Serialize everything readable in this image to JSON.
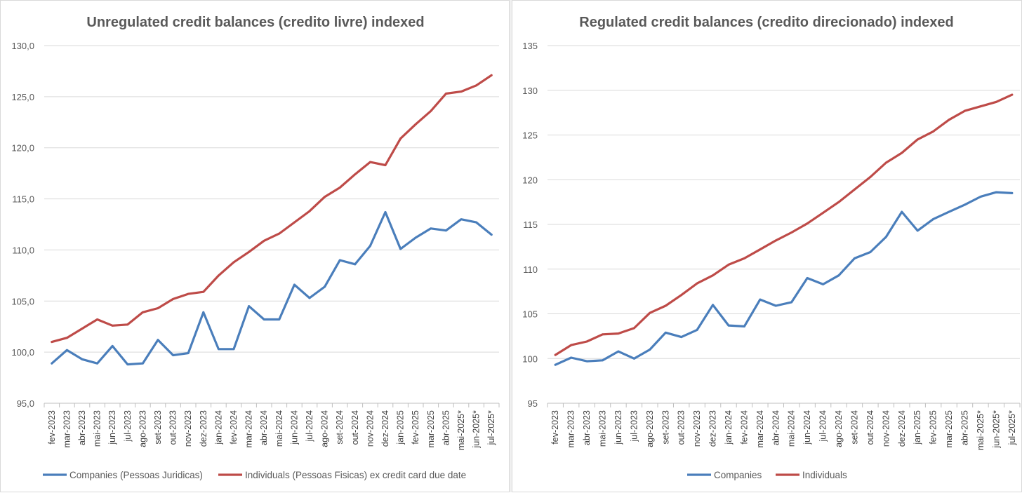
{
  "colors": {
    "companies": "#4a7ebb",
    "individuals": "#be4b48",
    "grid": "#d9d9d9",
    "text": "#595959"
  },
  "chart_data": [
    {
      "type": "line",
      "title": "Unregulated credit balances (credito livre) indexed",
      "ylim": [
        95,
        130
      ],
      "yticks": [
        "95,0",
        "100,0",
        "105,0",
        "110,0",
        "115,0",
        "120,0",
        "125,0",
        "130,0"
      ],
      "grid": true,
      "legend_position": "bottom",
      "categories": [
        "fev-2023",
        "mar-2023",
        "abr-2023",
        "mai-2023",
        "jun-2023",
        "jul-2023",
        "ago-2023",
        "set-2023",
        "out-2023",
        "nov-2023",
        "dez-2023",
        "jan-2024",
        "fev-2024",
        "mar-2024",
        "abr-2024",
        "mai-2024",
        "jun-2024",
        "jul-2024",
        "ago-2024",
        "set-2024",
        "out-2024",
        "nov-2024",
        "dez-2024",
        "jan-2025",
        "fev-2025",
        "mar-2025",
        "abr-2025",
        "mai-2025*",
        "jun-2025*",
        "jul-2025*"
      ],
      "series": [
        {
          "name": "Companies (Pessoas Juridicas)",
          "color": "#4a7ebb",
          "values": [
            98.9,
            100.2,
            99.3,
            98.9,
            100.6,
            98.8,
            98.9,
            101.2,
            99.7,
            99.9,
            103.9,
            100.3,
            100.3,
            104.5,
            103.2,
            103.2,
            106.6,
            105.3,
            106.4,
            109.0,
            108.6,
            110.4,
            113.7,
            110.1,
            111.2,
            112.1,
            111.9,
            113.0,
            112.7,
            111.5
          ]
        },
        {
          "name": "Individuals (Pessoas Fisicas) ex credit card due date",
          "color": "#be4b48",
          "values": [
            101.0,
            101.4,
            102.3,
            103.2,
            102.6,
            102.7,
            103.9,
            104.3,
            105.2,
            105.7,
            105.9,
            107.5,
            108.8,
            109.8,
            110.9,
            111.6,
            112.7,
            113.8,
            115.2,
            116.1,
            117.4,
            118.6,
            118.3,
            120.9,
            122.3,
            123.6,
            125.3,
            125.5,
            126.1,
            127.1
          ]
        }
      ]
    },
    {
      "type": "line",
      "title": "Regulated credit balances (credito direcionado) indexed",
      "ylim": [
        95,
        135
      ],
      "yticks": [
        "95",
        "100",
        "105",
        "110",
        "115",
        "120",
        "125",
        "130",
        "135"
      ],
      "grid": true,
      "legend_position": "bottom",
      "categories": [
        "fev-2023",
        "mar-2023",
        "abr-2023",
        "mai-2023",
        "jun-2023",
        "jul-2023",
        "ago-2023",
        "set-2023",
        "out-2023",
        "nov-2023",
        "dez-2023",
        "jan-2024",
        "fev-2024",
        "mar-2024",
        "abr-2024",
        "mai-2024",
        "jun-2024",
        "jul-2024",
        "ago-2024",
        "set-2024",
        "out-2024",
        "nov-2024",
        "dez-2024",
        "jan-2025",
        "fev-2025",
        "mar-2025",
        "abr-2025",
        "mai-2025*",
        "jun-2025*",
        "jul-2025*"
      ],
      "series": [
        {
          "name": "Companies",
          "color": "#4a7ebb",
          "values": [
            99.3,
            100.1,
            99.7,
            99.8,
            100.8,
            100.0,
            101.0,
            102.9,
            102.4,
            103.2,
            106.0,
            103.7,
            103.6,
            106.6,
            105.9,
            106.3,
            109.0,
            108.3,
            109.3,
            111.2,
            111.9,
            113.6,
            116.4,
            114.3,
            115.6,
            116.4,
            117.2,
            118.1,
            118.6,
            118.5
          ]
        },
        {
          "name": "Individuals",
          "color": "#be4b48",
          "values": [
            100.4,
            101.5,
            101.9,
            102.7,
            102.8,
            103.4,
            105.1,
            105.9,
            107.1,
            108.4,
            109.3,
            110.5,
            111.2,
            112.2,
            113.2,
            114.1,
            115.1,
            116.3,
            117.5,
            118.9,
            120.3,
            121.9,
            123.0,
            124.5,
            125.4,
            126.7,
            127.7,
            128.2,
            128.7,
            129.5
          ]
        }
      ]
    }
  ]
}
